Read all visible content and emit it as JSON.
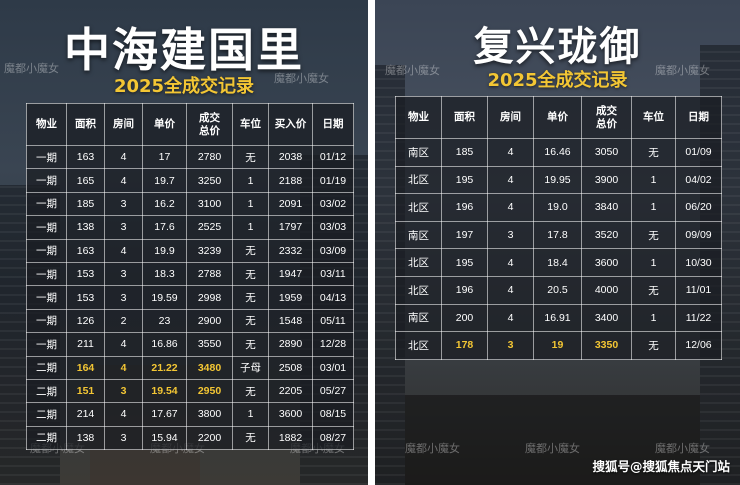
{
  "left": {
    "title": "中海建国里",
    "subtitle": "2025全成交记录",
    "watermark": "魔都小魔女",
    "headers": [
      "物业",
      "面积",
      "房间",
      "单价",
      "成交总价",
      "车位",
      "买入价",
      "日期"
    ],
    "rows": [
      [
        "一期",
        "163",
        "4",
        "17",
        "2780",
        "无",
        "2038",
        "01/12"
      ],
      [
        "一期",
        "165",
        "4",
        "19.7",
        "3250",
        "1",
        "2188",
        "01/19"
      ],
      [
        "一期",
        "185",
        "3",
        "16.2",
        "3100",
        "1",
        "2091",
        "03/02"
      ],
      [
        "一期",
        "138",
        "3",
        "17.6",
        "2525",
        "1",
        "1797",
        "03/03"
      ],
      [
        "一期",
        "163",
        "4",
        "19.9",
        "3239",
        "无",
        "2332",
        "03/09"
      ],
      [
        "一期",
        "153",
        "3",
        "18.3",
        "2788",
        "无",
        "1947",
        "03/11"
      ],
      [
        "一期",
        "153",
        "3",
        "19.59",
        "2998",
        "无",
        "1959",
        "04/13"
      ],
      [
        "一期",
        "126",
        "2",
        "23",
        "2900",
        "无",
        "1548",
        "05/11"
      ],
      [
        "一期",
        "211",
        "4",
        "16.86",
        "3550",
        "无",
        "2890",
        "12/28"
      ],
      [
        "二期",
        "164",
        "4",
        "21.22",
        "3480",
        "子母",
        "2508",
        "03/01"
      ],
      [
        "二期",
        "151",
        "3",
        "19.54",
        "2950",
        "无",
        "2205",
        "05/27"
      ],
      [
        "二期",
        "214",
        "4",
        "17.67",
        "3800",
        "1",
        "3600",
        "08/15"
      ],
      [
        "二期",
        "138",
        "3",
        "15.94",
        "2200",
        "无",
        "1882",
        "08/27"
      ]
    ],
    "highlight_rows": [
      9,
      10
    ]
  },
  "right": {
    "title": "复兴珑御",
    "subtitle": "2025全成交记录",
    "watermark": "魔都小魔女",
    "headers": [
      "物业",
      "面积",
      "房间",
      "单价",
      "成交总价",
      "车位",
      "日期"
    ],
    "rows": [
      [
        "南区",
        "185",
        "4",
        "16.46",
        "3050",
        "无",
        "01/09"
      ],
      [
        "北区",
        "195",
        "4",
        "19.95",
        "3900",
        "1",
        "04/02"
      ],
      [
        "北区",
        "196",
        "4",
        "19.0",
        "3840",
        "1",
        "06/20"
      ],
      [
        "南区",
        "197",
        "3",
        "17.8",
        "3520",
        "无",
        "09/09"
      ],
      [
        "北区",
        "195",
        "4",
        "18.4",
        "3600",
        "1",
        "10/30"
      ],
      [
        "北区",
        "196",
        "4",
        "20.5",
        "4000",
        "无",
        "11/01"
      ],
      [
        "南区",
        "200",
        "4",
        "16.91",
        "3400",
        "1",
        "11/22"
      ],
      [
        "北区",
        "178",
        "3",
        "19",
        "3350",
        "无",
        "12/06"
      ]
    ],
    "highlight_rows": [
      7
    ]
  },
  "footer": {
    "brand": "搜狐号@搜狐焦点天门站"
  },
  "colors": {
    "accent": "#f3c634",
    "text": "#ffffff"
  }
}
